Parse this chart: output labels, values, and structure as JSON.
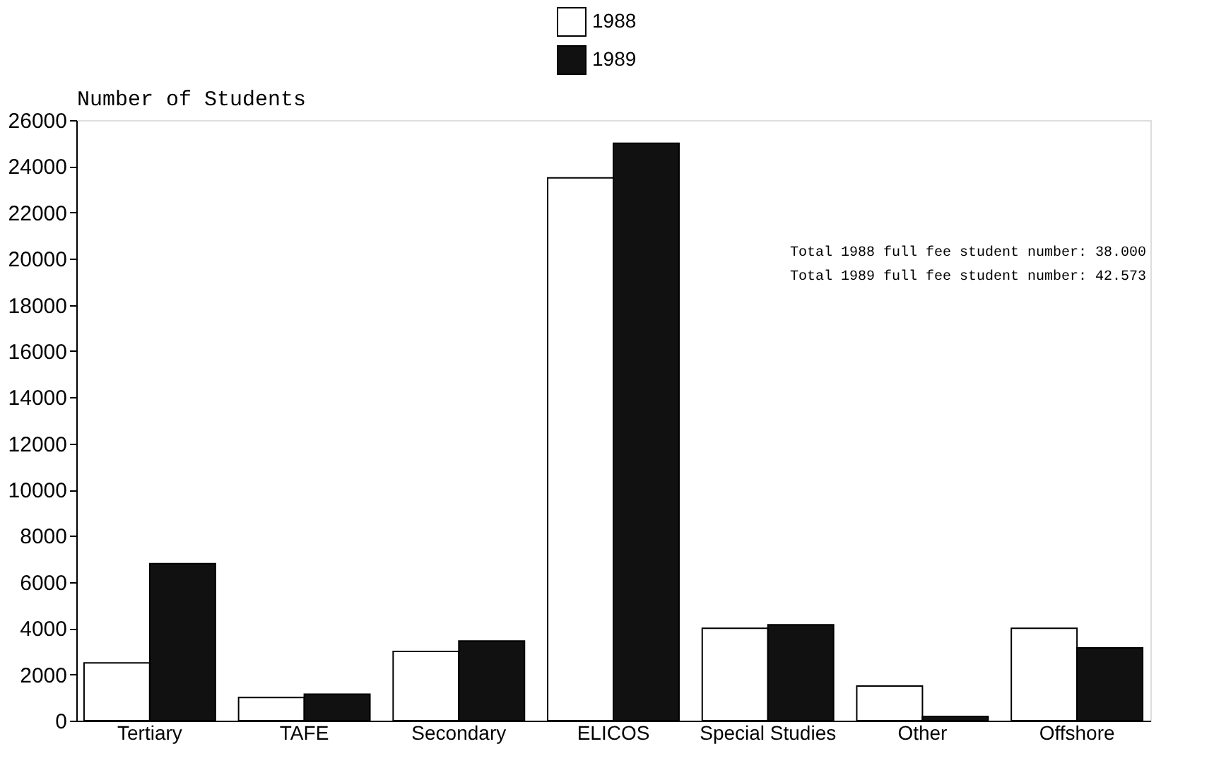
{
  "chart_data": {
    "type": "bar",
    "ylabel": "Number of Students",
    "categories": [
      "Tertiary",
      "TAFE",
      "Secondary",
      "ELICOS",
      "Special Studies",
      "Other",
      "Offshore"
    ],
    "series": [
      {
        "name": "1988",
        "color": "#ffffff",
        "values": [
          2500,
          1000,
          3000,
          23500,
          4000,
          1500,
          4000
        ]
      },
      {
        "name": "1989",
        "color": "#111111",
        "values": [
          6800,
          1150,
          3450,
          25000,
          4150,
          180,
          3150
        ]
      }
    ],
    "ylim": [
      0,
      26000
    ],
    "yticks": [
      0,
      2000,
      4000,
      6000,
      8000,
      10000,
      12000,
      14000,
      16000,
      18000,
      20000,
      22000,
      24000,
      26000
    ],
    "annotations": [
      "Total 1988 full fee student number: 38.000",
      "Total 1989 full fee student number: 42.573"
    ],
    "grid": false,
    "legend": "top"
  }
}
